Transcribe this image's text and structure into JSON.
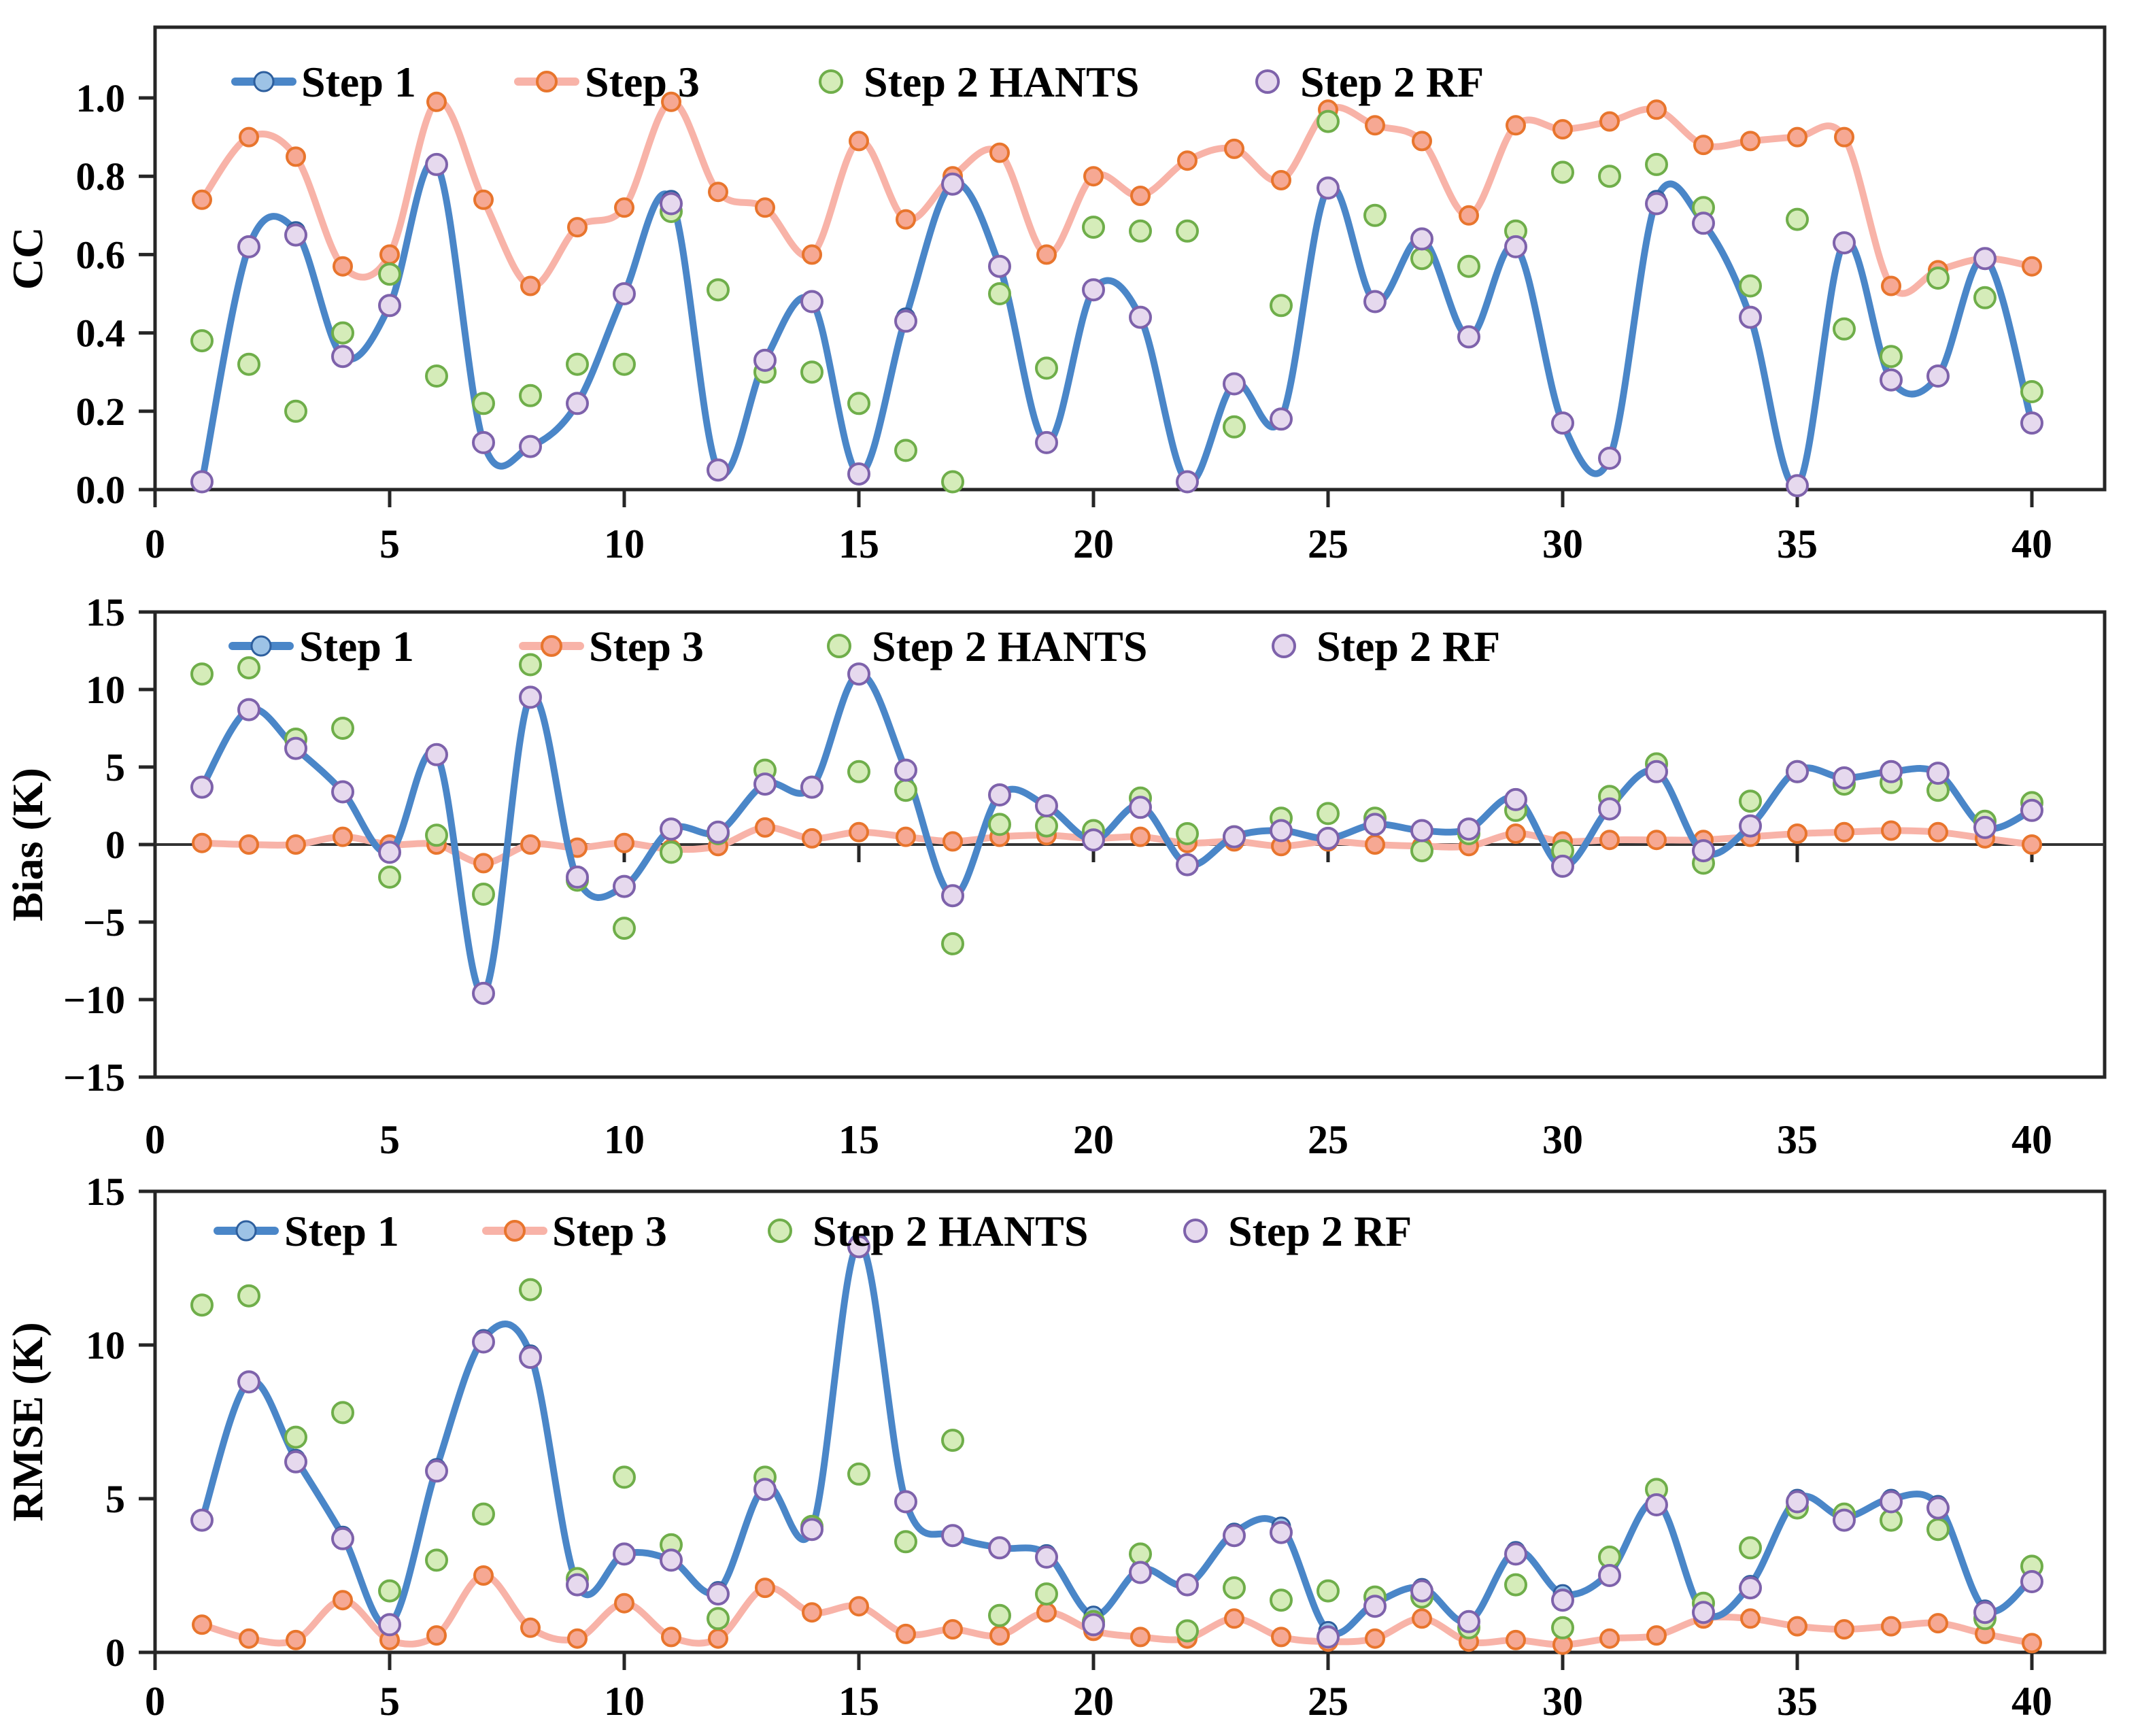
{
  "page": {
    "background": "#ffffff"
  },
  "colors": {
    "axis": "#262626",
    "zero_line": "#333333",
    "step1_line": "#4a86c8",
    "step1_marker_fill": "#9dc3e6",
    "step1_marker_stroke": "#2e5f9e",
    "step3_line": "#f8b3a8",
    "step3_marker_fill": "#f6a893",
    "step3_marker_stroke": "#e8752d",
    "hants_fill": "#d5ecb9",
    "hants_stroke": "#6fae4a",
    "rf_fill": "#e6d9ee",
    "rf_stroke": "#7e62ab"
  },
  "legend": {
    "labels": [
      "Step 1",
      "Step 3",
      "Step 2 HANTS",
      "Step 2 RF"
    ]
  },
  "x": [
    1,
    2,
    3,
    4,
    5,
    6,
    7,
    8,
    9,
    10,
    11,
    12,
    13,
    14,
    15,
    16,
    17,
    18,
    19,
    20,
    21,
    22,
    23,
    24,
    25,
    26,
    27,
    28,
    29,
    30,
    31,
    32,
    33,
    34,
    35,
    36,
    37,
    38,
    39,
    40
  ],
  "chart_data": [
    {
      "id": "cc",
      "type": "line+scatter",
      "ylabel": "CC",
      "ylim": [
        0,
        1.18
      ],
      "yticks": [
        "1.0",
        "0.8",
        "0.6",
        "0.4",
        "0.2",
        "0.0"
      ],
      "ytick_values": [
        1.0,
        0.8,
        0.6,
        0.4,
        0.2,
        0.0
      ],
      "xticks": [
        0,
        5,
        10,
        15,
        20,
        25,
        30,
        35,
        40
      ],
      "grid": false,
      "legend_position": "top-inside",
      "series": [
        {
          "name": "Step 1",
          "type": "line",
          "values": [
            0.02,
            0.62,
            0.66,
            0.34,
            0.47,
            0.83,
            0.12,
            0.11,
            0.22,
            0.5,
            0.74,
            0.05,
            0.33,
            0.48,
            0.04,
            0.44,
            0.78,
            0.57,
            0.12,
            0.51,
            0.44,
            0.02,
            0.27,
            0.18,
            0.77,
            0.48,
            0.64,
            0.39,
            0.62,
            0.17,
            0.08,
            0.74,
            0.68,
            0.44,
            0.01,
            0.63,
            0.28,
            0.29,
            0.59,
            0.17
          ]
        },
        {
          "name": "Step 3",
          "type": "line",
          "values": [
            0.74,
            0.9,
            0.85,
            0.57,
            0.6,
            0.99,
            0.74,
            0.52,
            0.67,
            0.72,
            0.99,
            0.76,
            0.72,
            0.6,
            0.89,
            0.69,
            0.8,
            0.86,
            0.6,
            0.8,
            0.75,
            0.84,
            0.87,
            0.79,
            0.97,
            0.93,
            0.89,
            0.7,
            0.93,
            0.92,
            0.94,
            0.97,
            0.88,
            0.89,
            0.9,
            0.9,
            0.52,
            0.56,
            0.59,
            0.57
          ]
        },
        {
          "name": "Step 2 HANTS",
          "type": "scatter",
          "values": [
            0.38,
            0.32,
            0.2,
            0.4,
            0.55,
            0.29,
            0.22,
            0.24,
            0.32,
            0.32,
            0.71,
            0.51,
            0.3,
            0.3,
            0.22,
            0.1,
            0.02,
            0.5,
            0.31,
            0.67,
            0.66,
            0.66,
            0.16,
            0.47,
            0.94,
            0.7,
            0.59,
            0.57,
            0.66,
            0.81,
            0.8,
            0.83,
            0.72,
            0.52,
            0.69,
            0.41,
            0.34,
            0.54,
            0.49,
            0.25
          ]
        },
        {
          "name": "Step 2 RF",
          "type": "scatter",
          "values": [
            0.02,
            0.62,
            0.65,
            0.34,
            0.47,
            0.83,
            0.12,
            0.11,
            0.22,
            0.5,
            0.73,
            0.05,
            0.33,
            0.48,
            0.04,
            0.43,
            0.78,
            0.57,
            0.12,
            0.51,
            0.44,
            0.02,
            0.27,
            0.18,
            0.77,
            0.48,
            0.64,
            0.39,
            0.62,
            0.17,
            0.08,
            0.73,
            0.68,
            0.44,
            0.01,
            0.63,
            0.28,
            0.29,
            0.59,
            0.17
          ]
        }
      ]
    },
    {
      "id": "bias",
      "type": "line+scatter",
      "ylabel": "Bias (K)",
      "ylim": [
        -15,
        15
      ],
      "yticks": [
        "15",
        "10",
        "5",
        "0",
        "−5",
        "−10",
        "−15"
      ],
      "ytick_values": [
        15,
        10,
        5,
        0,
        -5,
        -10,
        -15
      ],
      "xticks": [
        0,
        5,
        10,
        15,
        20,
        25,
        30,
        35,
        40
      ],
      "grid": false,
      "legend_position": "top-inside",
      "series": [
        {
          "name": "Step 1",
          "type": "line",
          "values": [
            3.7,
            8.7,
            6.2,
            3.4,
            -0.5,
            5.8,
            -9.6,
            9.5,
            -2.2,
            -2.7,
            1.0,
            0.8,
            3.9,
            3.7,
            11.0,
            4.8,
            -3.3,
            3.2,
            2.5,
            0.3,
            2.5,
            -1.3,
            0.5,
            0.9,
            0.4,
            1.3,
            0.9,
            1.0,
            3.0,
            -1.4,
            2.4,
            4.7,
            -0.5,
            1.2,
            4.8,
            4.3,
            4.7,
            4.6,
            1.1,
            2.2
          ]
        },
        {
          "name": "Step 3",
          "type": "line",
          "values": [
            0.1,
            0.0,
            0.0,
            0.5,
            0.0,
            0.0,
            -1.2,
            0.0,
            -0.2,
            0.1,
            -0.3,
            -0.1,
            1.1,
            0.4,
            0.8,
            0.5,
            0.2,
            0.5,
            0.6,
            0.4,
            0.5,
            0.1,
            0.2,
            -0.1,
            0.2,
            0.0,
            -0.1,
            -0.1,
            0.7,
            0.2,
            0.3,
            0.3,
            0.3,
            0.5,
            0.7,
            0.8,
            0.9,
            0.8,
            0.4,
            0.0
          ]
        },
        {
          "name": "Step 2 HANTS",
          "type": "scatter",
          "values": [
            11.0,
            11.4,
            6.8,
            7.5,
            -2.1,
            0.6,
            -3.2,
            11.6,
            -2.3,
            -5.4,
            -0.5,
            0.7,
            4.8,
            3.7,
            4.7,
            3.5,
            -6.4,
            1.3,
            1.2,
            0.9,
            3.0,
            0.7,
            0.5,
            1.7,
            2.0,
            1.7,
            -0.4,
            0.7,
            2.2,
            -0.4,
            3.1,
            5.2,
            -1.2,
            2.8,
            4.7,
            3.9,
            4.0,
            3.5,
            1.5,
            2.7
          ]
        },
        {
          "name": "Step 2 RF",
          "type": "scatter",
          "values": [
            3.7,
            8.7,
            6.2,
            3.4,
            -0.5,
            5.8,
            -9.6,
            9.5,
            -2.1,
            -2.7,
            1.0,
            0.8,
            3.9,
            3.7,
            11.0,
            4.8,
            -3.3,
            3.2,
            2.5,
            0.3,
            2.4,
            -1.3,
            0.5,
            0.9,
            0.4,
            1.3,
            0.9,
            1.0,
            2.9,
            -1.4,
            2.3,
            4.7,
            -0.4,
            1.2,
            4.7,
            4.3,
            4.7,
            4.6,
            1.1,
            2.2
          ]
        }
      ]
    },
    {
      "id": "rmse",
      "type": "line+scatter",
      "ylabel": "RMSE (K)",
      "ylim": [
        0,
        15
      ],
      "yticks": [
        "15",
        "10",
        "5",
        "0"
      ],
      "ytick_values": [
        15,
        10,
        5,
        0
      ],
      "xticks": [
        0,
        5,
        10,
        15,
        20,
        25,
        30,
        35,
        40
      ],
      "grid": false,
      "legend_position": "top-inside",
      "series": [
        {
          "name": "Step 1",
          "type": "line",
          "values": [
            4.3,
            8.8,
            6.3,
            3.8,
            0.9,
            6.0,
            10.2,
            9.7,
            2.2,
            3.2,
            3.0,
            2.0,
            5.4,
            4.0,
            13.3,
            4.9,
            3.8,
            3.4,
            3.2,
            1.2,
            2.7,
            2.2,
            3.9,
            4.1,
            0.7,
            1.6,
            2.1,
            1.0,
            3.3,
            1.9,
            2.6,
            4.9,
            1.3,
            2.2,
            5.0,
            4.4,
            5.0,
            4.8,
            1.4,
            2.4
          ]
        },
        {
          "name": "Step 3",
          "type": "line",
          "values": [
            0.9,
            0.45,
            0.4,
            1.7,
            0.4,
            0.55,
            2.5,
            0.8,
            0.45,
            1.6,
            0.5,
            0.45,
            2.1,
            1.3,
            1.5,
            0.6,
            0.75,
            0.55,
            1.3,
            0.7,
            0.5,
            0.45,
            1.1,
            0.5,
            0.35,
            0.45,
            1.1,
            0.35,
            0.4,
            0.25,
            0.45,
            0.55,
            1.1,
            1.1,
            0.85,
            0.75,
            0.85,
            0.95,
            0.6,
            0.3
          ]
        },
        {
          "name": "Step 2 HANTS",
          "type": "scatter",
          "values": [
            11.3,
            11.6,
            7.0,
            7.8,
            2.0,
            3.0,
            4.5,
            11.8,
            2.4,
            5.7,
            3.5,
            1.1,
            5.7,
            4.1,
            5.8,
            3.6,
            6.9,
            1.2,
            1.9,
            1.0,
            3.2,
            0.7,
            2.1,
            1.7,
            2.0,
            1.8,
            1.8,
            0.8,
            2.2,
            0.8,
            3.1,
            5.3,
            1.6,
            3.4,
            4.7,
            4.5,
            4.3,
            4.0,
            1.1,
            2.8
          ]
        },
        {
          "name": "Step 2 RF",
          "type": "scatter",
          "values": [
            4.3,
            8.8,
            6.2,
            3.7,
            0.9,
            5.9,
            10.1,
            9.6,
            2.2,
            3.2,
            3.0,
            1.9,
            5.3,
            4.0,
            13.2,
            4.9,
            3.8,
            3.4,
            3.1,
            0.9,
            2.6,
            2.2,
            3.8,
            3.9,
            0.5,
            1.5,
            2.0,
            1.0,
            3.2,
            1.7,
            2.5,
            4.8,
            1.3,
            2.1,
            4.9,
            4.3,
            4.9,
            4.7,
            1.3,
            2.3
          ]
        }
      ]
    }
  ]
}
